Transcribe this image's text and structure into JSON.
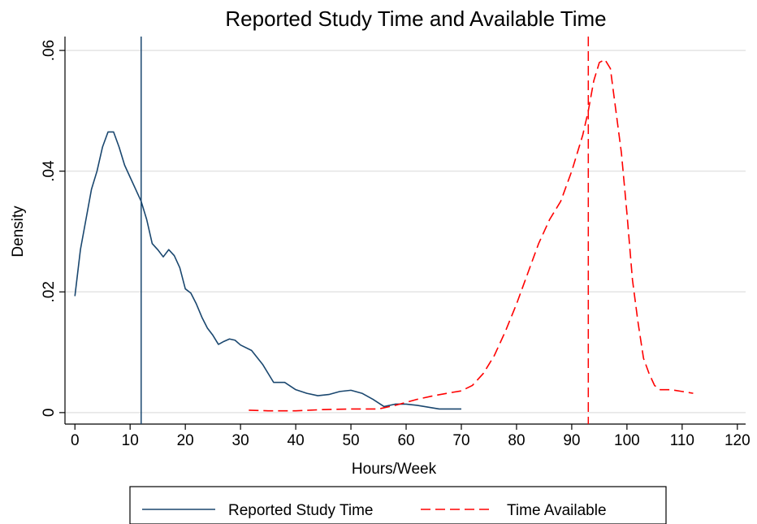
{
  "chart_data": {
    "type": "line",
    "title": "Reported Study Time and Available Time",
    "x_label": "Hours/Week",
    "y_label": "Density",
    "xlim": [
      -1.8,
      121.5
    ],
    "ylim": [
      -0.0019,
      0.0623
    ],
    "xticks": [
      0,
      10,
      20,
      30,
      40,
      50,
      60,
      70,
      80,
      90,
      100,
      110,
      120
    ],
    "yticks": [
      {
        "value": 0,
        "label": "0"
      },
      {
        "value": 0.02,
        "label": ".02"
      },
      {
        "value": 0.04,
        "label": ".04"
      },
      {
        "value": 0.06,
        "label": ".06"
      }
    ],
    "grid": true,
    "legend": "bottom",
    "series": [
      {
        "name": "Reported Study Time",
        "color": "#1a476f",
        "style": "solid",
        "x": [
          0,
          1,
          2,
          3,
          4,
          5,
          6,
          7,
          8,
          9,
          10,
          11,
          12,
          13,
          14,
          15,
          16,
          17,
          18,
          19,
          20,
          21,
          22,
          23,
          24,
          25,
          26,
          27,
          28,
          29,
          30,
          32,
          34,
          36,
          38,
          40,
          42,
          44,
          46,
          48,
          50,
          52,
          54,
          56,
          58,
          60,
          62,
          64,
          66,
          68,
          70
        ],
        "values": [
          0.0193,
          0.027,
          0.032,
          0.037,
          0.04,
          0.044,
          0.0465,
          0.0465,
          0.044,
          0.041,
          0.039,
          0.037,
          0.035,
          0.032,
          0.028,
          0.027,
          0.0258,
          0.027,
          0.026,
          0.024,
          0.0205,
          0.0198,
          0.018,
          0.0158,
          0.014,
          0.0128,
          0.0113,
          0.0118,
          0.0122,
          0.012,
          0.0112,
          0.0103,
          0.008,
          0.005,
          0.005,
          0.0038,
          0.0032,
          0.0028,
          0.003,
          0.0035,
          0.0037,
          0.0032,
          0.0022,
          0.001,
          0.0014,
          0.0014,
          0.0012,
          0.0009,
          0.0006,
          0.0006,
          0.0006
        ]
      },
      {
        "name": "Time Available",
        "color": "#ff0000",
        "style": "dashed",
        "x": [
          31.5,
          35,
          40,
          45,
          50,
          55,
          58,
          60,
          62,
          65,
          68,
          70,
          72,
          74,
          76,
          78,
          80,
          82,
          84,
          86,
          88,
          90,
          92,
          93,
          94,
          95,
          96,
          97,
          98,
          99,
          100,
          101,
          102,
          103,
          104,
          105,
          106,
          108,
          110,
          112
        ],
        "values": [
          0.0004,
          0.0003,
          0.0003,
          0.0005,
          0.0006,
          0.0006,
          0.0012,
          0.0017,
          0.0022,
          0.0028,
          0.0033,
          0.0036,
          0.0045,
          0.0065,
          0.0095,
          0.0135,
          0.018,
          0.023,
          0.028,
          0.032,
          0.035,
          0.04,
          0.046,
          0.05,
          0.055,
          0.058,
          0.0585,
          0.057,
          0.05,
          0.043,
          0.033,
          0.022,
          0.015,
          0.009,
          0.0065,
          0.0045,
          0.0038,
          0.0038,
          0.0035,
          0.0032
        ]
      }
    ],
    "reference_lines": [
      {
        "x": 12,
        "color": "#1a476f",
        "style": "solid"
      },
      {
        "x": 93,
        "color": "#ff0000",
        "style": "dashed"
      }
    ]
  }
}
